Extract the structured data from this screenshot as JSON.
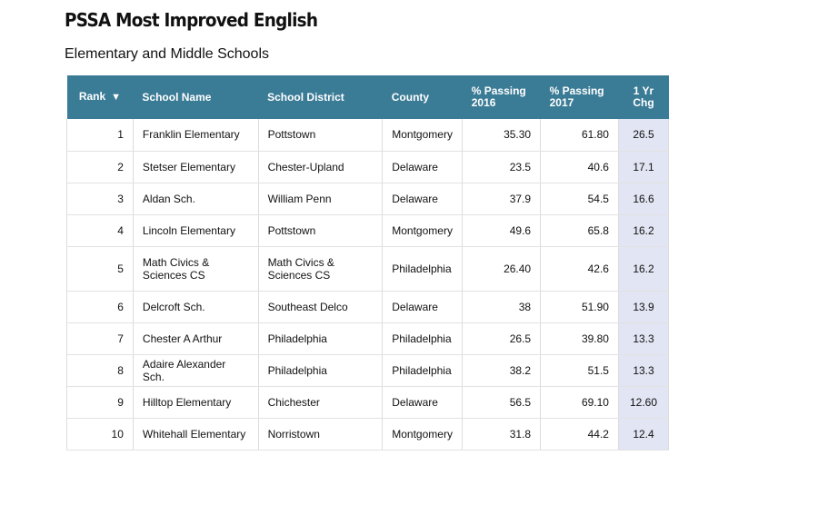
{
  "title": "PSSA Most Improved English",
  "subtitle": "Elementary and Middle Schools",
  "colors": {
    "header_bg": "#3a7b96",
    "change_col_bg": "#e2e5f3"
  },
  "table": {
    "headers": {
      "rank": "Rank",
      "sort_icon": "▼",
      "school": "School Name",
      "district": "School District",
      "county": "County",
      "p16_line1": "% Passing",
      "p16_line2": "2016",
      "p17_line1": "% Passing",
      "p17_line2": "2017",
      "chg_line1": "1 Yr",
      "chg_line2": "Chg"
    },
    "rows": [
      {
        "rank": "1",
        "school": "Franklin Elementary",
        "district": "Pottstown",
        "county": "Montgomery",
        "p16": "35.30",
        "p17": "61.80",
        "chg": "26.5"
      },
      {
        "rank": "2",
        "school": "Stetser Elementary",
        "district": "Chester-Upland",
        "county": "Delaware",
        "p16": "23.5",
        "p17": "40.6",
        "chg": "17.1"
      },
      {
        "rank": "3",
        "school": "Aldan Sch.",
        "district": "William Penn",
        "county": "Delaware",
        "p16": "37.9",
        "p17": "54.5",
        "chg": "16.6"
      },
      {
        "rank": "4",
        "school": "Lincoln Elementary",
        "district": "Pottstown",
        "county": "Montgomery",
        "p16": "49.6",
        "p17": "65.8",
        "chg": "16.2"
      },
      {
        "rank": "5",
        "school": "Math Civics & Sciences CS",
        "district": "Math Civics & Sciences CS",
        "county": "Philadelphia",
        "p16": "26.40",
        "p17": "42.6",
        "chg": "16.2"
      },
      {
        "rank": "6",
        "school": "Delcroft Sch.",
        "district": "Southeast Delco",
        "county": "Delaware",
        "p16": "38",
        "p17": "51.90",
        "chg": "13.9"
      },
      {
        "rank": "7",
        "school": "Chester A Arthur",
        "district": "Philadelphia",
        "county": "Philadelphia",
        "p16": "26.5",
        "p17": "39.80",
        "chg": "13.3"
      },
      {
        "rank": "8",
        "school": "Adaire Alexander Sch.",
        "district": "Philadelphia",
        "county": "Philadelphia",
        "p16": "38.2",
        "p17": "51.5",
        "chg": "13.3"
      },
      {
        "rank": "9",
        "school": "Hilltop Elementary",
        "district": "Chichester",
        "county": "Delaware",
        "p16": "56.5",
        "p17": "69.10",
        "chg": "12.60"
      },
      {
        "rank": "10",
        "school": "Whitehall Elementary",
        "district": "Norristown",
        "county": "Montgomery",
        "p16": "31.8",
        "p17": "44.2",
        "chg": "12.4"
      }
    ]
  }
}
